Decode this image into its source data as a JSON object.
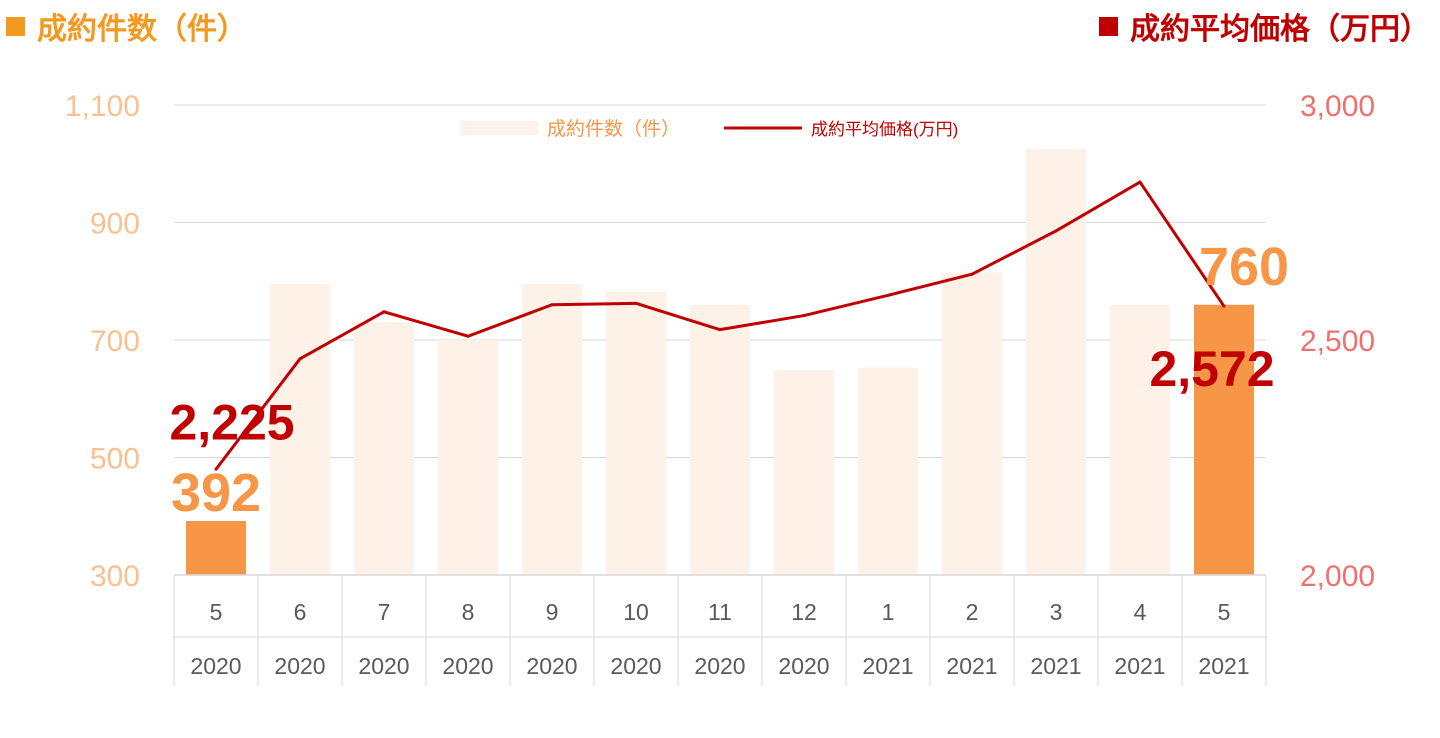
{
  "headers": {
    "left": "成約件数（件）",
    "right": "成約平均価格（万円）"
  },
  "colors": {
    "bar_light": "#fdf1e8",
    "bar_highlight": "#f79646",
    "left_tick": "#fac090",
    "right_tick": "#f07070",
    "line": "#c00000",
    "header_left": "#f4991f",
    "header_right": "#c00000",
    "axis_text": "#595959",
    "grid": "#d9d9d9"
  },
  "chart_data": {
    "type": "bar",
    "categories": [
      {
        "month": "5",
        "year": "2020"
      },
      {
        "month": "6",
        "year": "2020"
      },
      {
        "month": "7",
        "year": "2020"
      },
      {
        "month": "8",
        "year": "2020"
      },
      {
        "month": "9",
        "year": "2020"
      },
      {
        "month": "10",
        "year": "2020"
      },
      {
        "month": "11",
        "year": "2020"
      },
      {
        "month": "12",
        "year": "2020"
      },
      {
        "month": "1",
        "year": "2021"
      },
      {
        "month": "2",
        "year": "2021"
      },
      {
        "month": "3",
        "year": "2021"
      },
      {
        "month": "4",
        "year": "2021"
      },
      {
        "month": "5",
        "year": "2021"
      }
    ],
    "series": [
      {
        "name": "成約件数（件）",
        "type": "bar",
        "axis": "left",
        "values": [
          392,
          795,
          730,
          700,
          795,
          782,
          760,
          648,
          653,
          815,
          1025,
          760,
          760
        ],
        "highlight_indices": [
          0,
          12
        ]
      },
      {
        "name": "成約平均価格(万円)",
        "type": "line",
        "axis": "right",
        "values": [
          2225,
          2460,
          2560,
          2508,
          2575,
          2578,
          2522,
          2552,
          2595,
          2640,
          2732,
          2836,
          2572
        ]
      }
    ],
    "left_axis": {
      "range": [
        300,
        1100
      ],
      "ticks": [
        "300",
        "500",
        "700",
        "900",
        "1,100"
      ]
    },
    "right_axis": {
      "range": [
        2000,
        3000
      ],
      "ticks": [
        "2,000",
        "2,500",
        "3,000"
      ]
    },
    "data_labels": [
      {
        "series": 0,
        "index": 0,
        "text": "392"
      },
      {
        "series": 0,
        "index": 12,
        "text": "760"
      },
      {
        "series": 1,
        "index": 0,
        "text": "2,225"
      },
      {
        "series": 1,
        "index": 12,
        "text": "2,572"
      }
    ],
    "legend_position": "top"
  }
}
